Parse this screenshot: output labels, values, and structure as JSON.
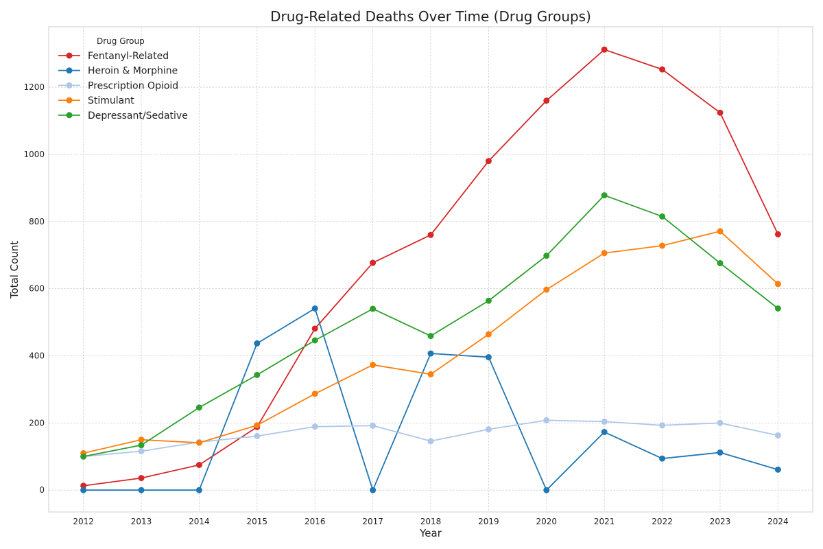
{
  "chart_data": {
    "type": "line",
    "title": "Drug-Related Deaths Over Time (Drug Groups)",
    "xlabel": "Year",
    "ylabel": "Total Count",
    "x": [
      2012,
      2013,
      2014,
      2015,
      2016,
      2017,
      2018,
      2019,
      2020,
      2021,
      2022,
      2023,
      2024
    ],
    "xlim": [
      2011.4,
      2024.6
    ],
    "ylim": [
      -65,
      1380
    ],
    "yticks": [
      0,
      200,
      400,
      600,
      800,
      1000,
      1200
    ],
    "grid": true,
    "legend": {
      "title": "Drug Group",
      "placement": "top-left"
    },
    "series": [
      {
        "name": "Fentanyl-Related",
        "color": "#d62728",
        "values": [
          13,
          36,
          75,
          188,
          481,
          677,
          760,
          980,
          1160,
          1312,
          1253,
          1124,
          762
        ]
      },
      {
        "name": "Heroin & Morphine",
        "color": "#1f77b4",
        "values": [
          0,
          0,
          0,
          437,
          541,
          0,
          407,
          396,
          0,
          173,
          94,
          112,
          61
        ]
      },
      {
        "name": "Prescription Opioid",
        "color": "#aec7e8",
        "values": [
          100,
          116,
          143,
          161,
          189,
          192,
          146,
          181,
          208,
          204,
          193,
          200,
          163
        ]
      },
      {
        "name": "Stimulant",
        "color": "#ff7f0e",
        "values": [
          110,
          150,
          141,
          193,
          287,
          373,
          345,
          464,
          597,
          706,
          728,
          771,
          614
        ]
      },
      {
        "name": "Depressant/Sedative",
        "color": "#2ca02c",
        "values": [
          100,
          134,
          246,
          343,
          446,
          540,
          459,
          564,
          698,
          878,
          815,
          676,
          541
        ]
      }
    ]
  }
}
